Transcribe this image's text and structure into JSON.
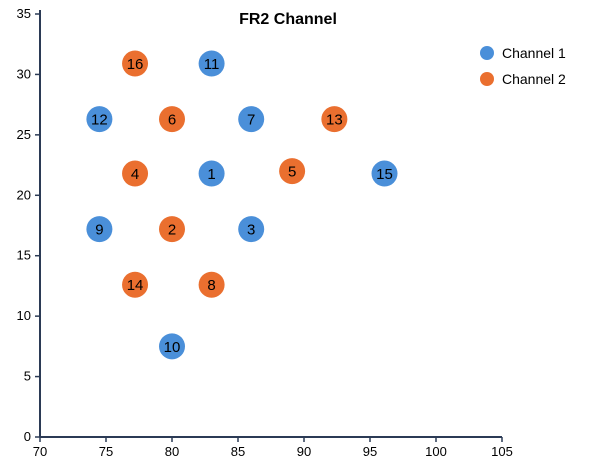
{
  "chart_data": {
    "type": "scatter",
    "title": "FR2 Channel",
    "xlabel": "",
    "ylabel": "",
    "xlim": [
      70,
      105
    ],
    "ylim": [
      0,
      35
    ],
    "x_ticks": [
      70,
      75,
      80,
      85,
      90,
      95,
      100,
      105
    ],
    "y_ticks": [
      0,
      5,
      10,
      15,
      20,
      25,
      30,
      35
    ],
    "grid": false,
    "legend": {
      "position": "top-right",
      "entries": [
        {
          "name": "Channel 1",
          "color": "#4a8fd9"
        },
        {
          "name": "Channel 2",
          "color": "#ea6f2f"
        }
      ]
    },
    "series": [
      {
        "name": "Channel 1",
        "color": "#4a8fd9",
        "points": [
          {
            "label": "1",
            "x": 83,
            "y": 21.8
          },
          {
            "label": "3",
            "x": 86,
            "y": 17.2
          },
          {
            "label": "7",
            "x": 86,
            "y": 26.3
          },
          {
            "label": "9",
            "x": 74.5,
            "y": 17.2
          },
          {
            "label": "10",
            "x": 80,
            "y": 7.5
          },
          {
            "label": "11",
            "x": 83,
            "y": 30.9
          },
          {
            "label": "12",
            "x": 74.5,
            "y": 26.3
          },
          {
            "label": "15",
            "x": 96.1,
            "y": 21.8
          }
        ]
      },
      {
        "name": "Channel 2",
        "color": "#ea6f2f",
        "points": [
          {
            "label": "2",
            "x": 80,
            "y": 17.2
          },
          {
            "label": "4",
            "x": 77.2,
            "y": 21.8
          },
          {
            "label": "5",
            "x": 89.1,
            "y": 22.0
          },
          {
            "label": "6",
            "x": 80,
            "y": 26.3
          },
          {
            "label": "8",
            "x": 83,
            "y": 12.6
          },
          {
            "label": "13",
            "x": 92.3,
            "y": 26.3
          },
          {
            "label": "14",
            "x": 77.2,
            "y": 12.6
          },
          {
            "label": "16",
            "x": 77.2,
            "y": 30.9
          }
        ]
      }
    ]
  }
}
